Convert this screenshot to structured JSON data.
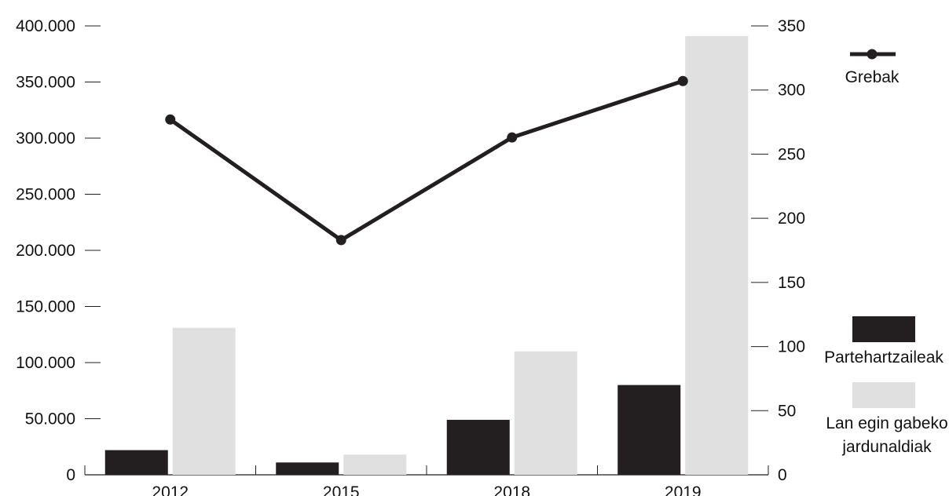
{
  "chart_data": {
    "type": "bar",
    "categories": [
      "2012",
      "2015",
      "2018",
      "2019"
    ],
    "series": [
      {
        "name": "Partehartzaileak",
        "type": "bar",
        "axis": "left",
        "values": [
          22000,
          11000,
          49000,
          80000
        ],
        "color": "#231f20"
      },
      {
        "name": "Lan egin gabeko jardunaldiak",
        "type": "bar",
        "axis": "left",
        "values": [
          131000,
          18000,
          110000,
          391000
        ],
        "color": "#e0e0e0"
      },
      {
        "name": "Grebak",
        "type": "line",
        "axis": "right",
        "values": [
          277,
          183,
          263,
          307
        ],
        "color": "#231f20"
      }
    ],
    "y_left": {
      "range": [
        0,
        400000
      ],
      "ticks": [
        0,
        50000,
        100000,
        150000,
        200000,
        250000,
        300000,
        350000,
        400000
      ],
      "tick_labels": [
        "0",
        "50.000",
        "100.000",
        "150.000",
        "200.000",
        "250.000",
        "300.000",
        "350.000",
        "400.000"
      ]
    },
    "y_right": {
      "range": [
        0,
        350
      ],
      "ticks": [
        0,
        50,
        100,
        150,
        200,
        250,
        300,
        350
      ],
      "tick_labels": [
        "0",
        "50",
        "100",
        "150",
        "200",
        "250",
        "300",
        "350"
      ]
    },
    "legend": {
      "position": "right",
      "items": [
        {
          "label": "Grebak",
          "symbol": "line-marker"
        },
        {
          "label": "Partehartzaileak",
          "symbol": "box-dark"
        },
        {
          "label_lines": [
            "Lan egin gabeko",
            "jardunaldiak"
          ],
          "symbol": "box-light"
        }
      ]
    },
    "grid": false
  }
}
